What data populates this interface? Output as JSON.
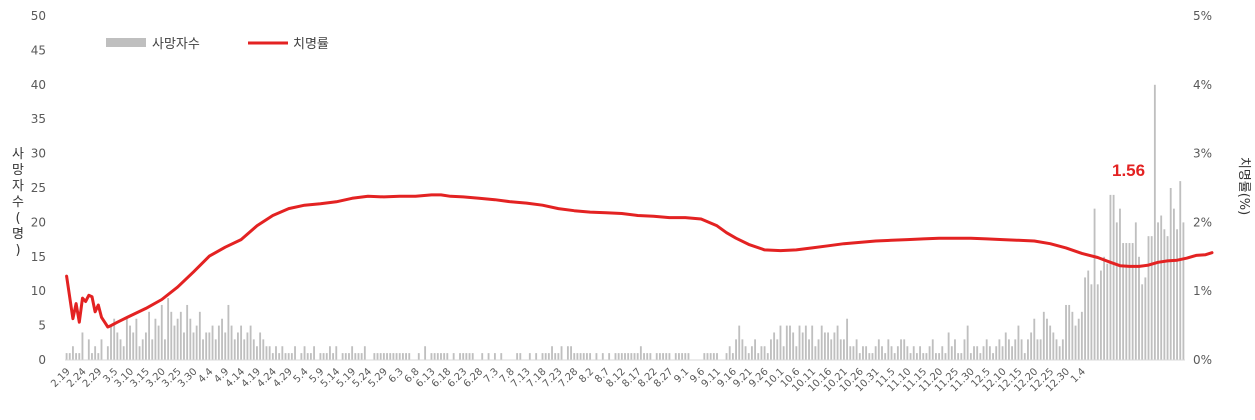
{
  "chart_data": {
    "type": "bar+line",
    "title": "",
    "colors": {
      "bars": "#bfbfbf",
      "line": "#e32222",
      "callout": "#e32222",
      "axis": "#d9d9d9"
    },
    "legend": {
      "placement": "top-left",
      "entries": [
        "사망자수",
        "치명률"
      ]
    },
    "y_left": {
      "label": "사망자수(명)",
      "range": [
        0,
        50
      ],
      "ticks": [
        "0",
        "5",
        "10",
        "15",
        "20",
        "25",
        "30",
        "35",
        "40",
        "45",
        "50"
      ]
    },
    "y_right": {
      "label": "치명률(%)",
      "range": [
        0,
        5
      ],
      "ticks": [
        "0%",
        "1%",
        "2%",
        "3%",
        "4%",
        "5%"
      ]
    },
    "x_date_range": [
      "2020-02-19",
      "2021-01-04"
    ],
    "x_tick_labels": [
      "2.19",
      "2.24",
      "2.29",
      "3.5",
      "3.10",
      "3.15",
      "3.20",
      "3.25",
      "3.30",
      "4.4",
      "4.9",
      "4.14",
      "4.19",
      "4.24",
      "4.29",
      "5.4",
      "5.9",
      "5.14",
      "5.19",
      "5.24",
      "5.29",
      "6.3",
      "6.8",
      "6.13",
      "6.18",
      "6.23",
      "6.28",
      "7.3",
      "7.8",
      "7.13",
      "7.18",
      "7.23",
      "7.28",
      "8.2",
      "8.7",
      "8.12",
      "8.17",
      "8.22",
      "8.27",
      "9.1",
      "9.6",
      "9.11",
      "9.16",
      "9.21",
      "9.26",
      "10.1",
      "10.6",
      "10.11",
      "10.16",
      "10.21",
      "10.26",
      "10.31",
      "11.5",
      "11.10",
      "11.15",
      "11.20",
      "11.25",
      "11.30",
      "12.5",
      "12.10",
      "12.15",
      "12.20",
      "12.25",
      "12.30",
      "1.4"
    ],
    "series": [
      {
        "name": "사망자수",
        "kind": "bar",
        "axis": "left",
        "values": [
          1,
          1,
          2,
          1,
          1,
          4,
          0,
          3,
          1,
          2,
          1,
          3,
          0,
          2,
          5,
          6,
          4,
          3,
          2,
          6,
          5,
          4,
          6,
          2,
          3,
          4,
          7,
          3,
          6,
          5,
          8,
          3,
          9,
          7,
          5,
          6,
          7,
          4,
          8,
          6,
          4,
          5,
          7,
          3,
          4,
          4,
          5,
          3,
          5,
          6,
          4,
          8,
          5,
          3,
          4,
          5,
          3,
          4,
          5,
          3,
          2,
          4,
          3,
          2,
          2,
          1,
          2,
          1,
          2,
          1,
          1,
          1,
          2,
          0,
          1,
          2,
          1,
          1,
          2,
          0,
          1,
          1,
          1,
          2,
          1,
          2,
          0,
          1,
          1,
          1,
          2,
          1,
          1,
          1,
          2,
          0,
          0,
          1,
          1,
          1,
          1,
          1,
          1,
          1,
          1,
          1,
          1,
          1,
          1,
          0,
          0,
          1,
          0,
          2,
          0,
          1,
          1,
          1,
          1,
          1,
          1,
          0,
          1,
          0,
          1,
          1,
          1,
          1,
          1,
          0,
          0,
          1,
          0,
          1,
          0,
          1,
          0,
          1,
          0,
          0,
          0,
          0,
          1,
          1,
          0,
          0,
          1,
          0,
          1,
          0,
          1,
          1,
          1,
          2,
          1,
          1,
          2,
          0,
          2,
          2,
          1,
          1,
          1,
          1,
          1,
          1,
          0,
          1,
          0,
          1,
          0,
          1,
          0,
          1,
          1,
          1,
          1,
          1,
          1,
          1,
          1,
          2,
          1,
          1,
          1,
          0,
          1,
          1,
          1,
          1,
          1,
          0,
          1,
          1,
          1,
          1,
          1,
          0,
          0,
          0,
          0,
          1,
          1,
          1,
          1,
          1,
          0,
          0,
          1,
          2,
          1,
          3,
          5,
          3,
          2,
          1,
          2,
          3,
          1,
          2,
          2,
          1,
          3,
          4,
          3,
          5,
          2,
          5,
          5,
          4,
          2,
          5,
          4,
          5,
          3,
          5,
          2,
          3,
          5,
          4,
          4,
          3,
          4,
          5,
          3,
          3,
          6,
          2,
          2,
          3,
          1,
          2,
          2,
          1,
          1,
          2,
          3,
          2,
          1,
          3,
          2,
          1,
          2,
          3,
          3,
          2,
          1,
          2,
          1,
          2,
          1,
          1,
          2,
          3,
          1,
          1,
          2,
          1,
          4,
          2,
          3,
          1,
          1,
          3,
          5,
          1,
          2,
          2,
          1,
          2,
          3,
          2,
          1,
          2,
          3,
          2,
          4,
          3,
          2,
          3,
          5,
          3,
          1,
          3,
          4,
          6,
          3,
          3,
          7,
          6,
          5,
          4,
          3,
          2,
          3,
          8,
          8,
          7,
          5,
          6,
          7,
          12,
          13,
          11,
          22,
          11,
          13,
          15,
          14,
          24,
          24,
          20,
          22,
          17,
          17,
          17,
          17,
          20,
          15,
          11,
          12,
          18,
          18,
          40,
          20,
          21,
          19,
          18,
          25,
          22,
          19,
          26,
          20
        ],
        "notes": "daily deaths; estimated from bar heights"
      },
      {
        "name": "치명률",
        "kind": "line",
        "axis": "right",
        "unit": "%",
        "points": [
          [
            0,
            1.22
          ],
          [
            2,
            0.6
          ],
          [
            3,
            0.82
          ],
          [
            4,
            0.55
          ],
          [
            5,
            0.9
          ],
          [
            6,
            0.85
          ],
          [
            7,
            0.94
          ],
          [
            8,
            0.92
          ],
          [
            9,
            0.7
          ],
          [
            10,
            0.8
          ],
          [
            11,
            0.62
          ],
          [
            12,
            0.55
          ],
          [
            13,
            0.48
          ],
          [
            14,
            0.5
          ],
          [
            16,
            0.55
          ],
          [
            20,
            0.64
          ],
          [
            25,
            0.75
          ],
          [
            30,
            0.88
          ],
          [
            35,
            1.06
          ],
          [
            40,
            1.28
          ],
          [
            45,
            1.51
          ],
          [
            50,
            1.64
          ],
          [
            55,
            1.75
          ],
          [
            60,
            1.95
          ],
          [
            65,
            2.1
          ],
          [
            70,
            2.2
          ],
          [
            75,
            2.25
          ],
          [
            80,
            2.27
          ],
          [
            85,
            2.3
          ],
          [
            90,
            2.35
          ],
          [
            95,
            2.38
          ],
          [
            100,
            2.37
          ],
          [
            105,
            2.38
          ],
          [
            110,
            2.38
          ],
          [
            115,
            2.4
          ],
          [
            118,
            2.4
          ],
          [
            121,
            2.38
          ],
          [
            125,
            2.37
          ],
          [
            130,
            2.35
          ],
          [
            135,
            2.33
          ],
          [
            140,
            2.3
          ],
          [
            145,
            2.28
          ],
          [
            150,
            2.25
          ],
          [
            155,
            2.2
          ],
          [
            160,
            2.17
          ],
          [
            165,
            2.15
          ],
          [
            170,
            2.14
          ],
          [
            175,
            2.13
          ],
          [
            180,
            2.1
          ],
          [
            185,
            2.09
          ],
          [
            190,
            2.07
          ],
          [
            195,
            2.07
          ],
          [
            200,
            2.05
          ],
          [
            205,
            1.95
          ],
          [
            208,
            1.85
          ],
          [
            211,
            1.77
          ],
          [
            215,
            1.68
          ],
          [
            220,
            1.6
          ],
          [
            225,
            1.59
          ],
          [
            230,
            1.6
          ],
          [
            235,
            1.63
          ],
          [
            240,
            1.66
          ],
          [
            245,
            1.69
          ],
          [
            250,
            1.71
          ],
          [
            255,
            1.73
          ],
          [
            260,
            1.74
          ],
          [
            265,
            1.75
          ],
          [
            270,
            1.76
          ],
          [
            275,
            1.77
          ],
          [
            280,
            1.77
          ],
          [
            285,
            1.77
          ],
          [
            290,
            1.76
          ],
          [
            295,
            1.75
          ],
          [
            300,
            1.74
          ],
          [
            305,
            1.73
          ],
          [
            310,
            1.69
          ],
          [
            315,
            1.63
          ],
          [
            320,
            1.55
          ],
          [
            325,
            1.49
          ],
          [
            329,
            1.42
          ],
          [
            332,
            1.37
          ],
          [
            335,
            1.36
          ],
          [
            338,
            1.36
          ],
          [
            341,
            1.38
          ],
          [
            344,
            1.42
          ],
          [
            347,
            1.44
          ],
          [
            350,
            1.45
          ],
          [
            353,
            1.48
          ],
          [
            356,
            1.52
          ],
          [
            359,
            1.53
          ],
          [
            361,
            1.56
          ]
        ]
      }
    ],
    "annotations": [
      {
        "text": "1.56"
      }
    ]
  }
}
